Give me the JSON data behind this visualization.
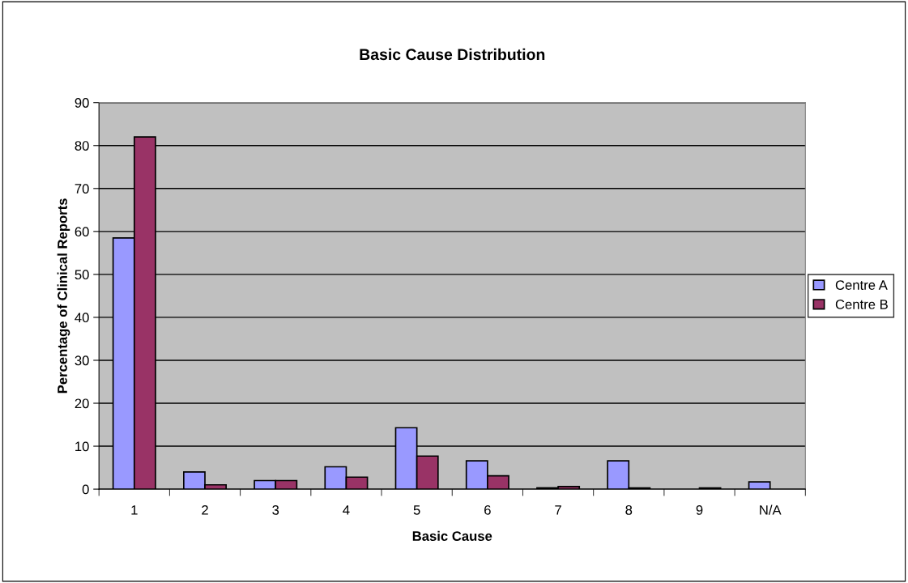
{
  "chart_data": {
    "type": "bar",
    "title": "Basic Cause Distribution",
    "xlabel": "Basic Cause",
    "ylabel": "Percentage of Clinical Reports",
    "categories": [
      "1",
      "2",
      "3",
      "4",
      "5",
      "6",
      "7",
      "8",
      "9",
      "N/A"
    ],
    "series": [
      {
        "name": "Centre A",
        "color": "#9999ff",
        "values": [
          58.5,
          4,
          2,
          5.2,
          14.3,
          6.6,
          0.3,
          6.6,
          null,
          1.7
        ]
      },
      {
        "name": "Centre B",
        "color": "#993366",
        "values": [
          82,
          1,
          2,
          2.8,
          7.7,
          3.1,
          0.6,
          0.3,
          0.3,
          null
        ]
      }
    ],
    "ylim": [
      0,
      90
    ],
    "yticks": [
      0,
      10,
      20,
      30,
      40,
      50,
      60,
      70,
      80,
      90
    ],
    "grid": "y",
    "legend": "right"
  }
}
